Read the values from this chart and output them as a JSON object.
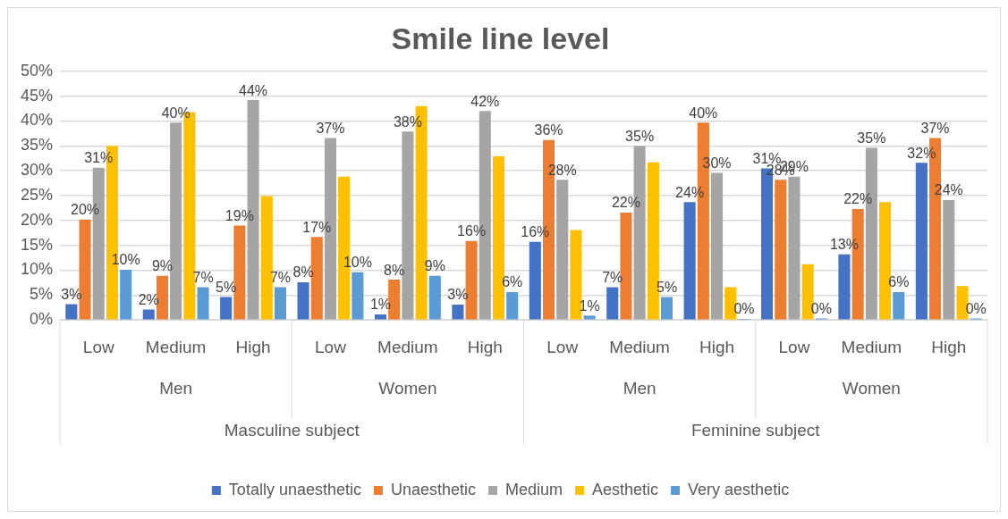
{
  "chart_data": {
    "type": "bar",
    "title": "Smile line level",
    "categories": [
      "Low",
      "Medium",
      "High",
      "Low",
      "Medium",
      "High",
      "Low",
      "Medium",
      "High",
      "Low",
      "Medium",
      "High"
    ],
    "annotations": [
      "Men",
      "Women",
      "Men",
      "Women",
      "Masculine subject",
      "Feminine subject"
    ],
    "series": [
      {
        "name": "Totally unaesthetic",
        "color": "#4472c4",
        "values": [
          3.2,
          2.1,
          4.6,
          7.6,
          1.1,
          3.1,
          15.7,
          6.6,
          23.7,
          30.5,
          13.2,
          31.6
        ],
        "value_labels": [
          "3%",
          "2%",
          "5%",
          "8%",
          "1%",
          "3%",
          "16%",
          "7%",
          "24%",
          "31%",
          "13%",
          "32%"
        ]
      },
      {
        "name": "Unaesthetic",
        "color": "#ed7d31",
        "values": [
          20.2,
          8.9,
          19.0,
          16.7,
          8.1,
          15.9,
          36.2,
          21.6,
          39.7,
          28.2,
          22.3,
          36.6
        ],
        "value_labels": [
          "20%",
          "9%",
          "19%",
          "17%",
          "8%",
          "16%",
          "36%",
          "22%",
          "40%",
          "28%",
          "22%",
          "37%"
        ]
      },
      {
        "name": "Medium",
        "color": "#a5a5a5",
        "values": [
          30.6,
          39.7,
          44.2,
          36.6,
          37.9,
          42.0,
          28.2,
          35.0,
          29.6,
          28.8,
          34.6,
          24.1
        ],
        "value_labels": [
          "31%",
          "40%",
          "44%",
          "37%",
          "38%",
          "42%",
          "28%",
          "35%",
          "30%",
          "29%",
          "35%",
          "24%"
        ]
      },
      {
        "name": "Aesthetic",
        "color": "#ffc000",
        "values": [
          35.0,
          41.8,
          24.9,
          28.8,
          43.0,
          32.9,
          18.1,
          31.7,
          6.6,
          11.2,
          23.7,
          6.8
        ]
      },
      {
        "name": "Very aesthetic",
        "color": "#5b9bd5",
        "values": [
          10.1,
          6.6,
          6.6,
          9.6,
          8.9,
          5.6,
          0.9,
          4.6,
          0.2,
          0.3,
          5.6,
          0.3
        ],
        "value_labels": [
          "10%",
          "7%",
          "7%",
          "10%",
          "9%",
          "6%",
          "1%",
          "5%",
          "0%",
          "0%",
          "6%",
          "0%"
        ]
      }
    ],
    "ylim": [
      0,
      50
    ],
    "yticks": [
      {
        "value": 0,
        "label": "0%"
      },
      {
        "value": 5,
        "label": "5%"
      },
      {
        "value": 10,
        "label": "10%"
      },
      {
        "value": 15,
        "label": "15%"
      },
      {
        "value": 20,
        "label": "20%"
      },
      {
        "value": 25,
        "label": "25%"
      },
      {
        "value": 30,
        "label": "30%"
      },
      {
        "value": 35,
        "label": "35%"
      },
      {
        "value": 40,
        "label": "40%"
      },
      {
        "value": 45,
        "label": "45%"
      },
      {
        "value": 50,
        "label": "50%"
      }
    ],
    "grid": "y",
    "legend": "bottom"
  }
}
